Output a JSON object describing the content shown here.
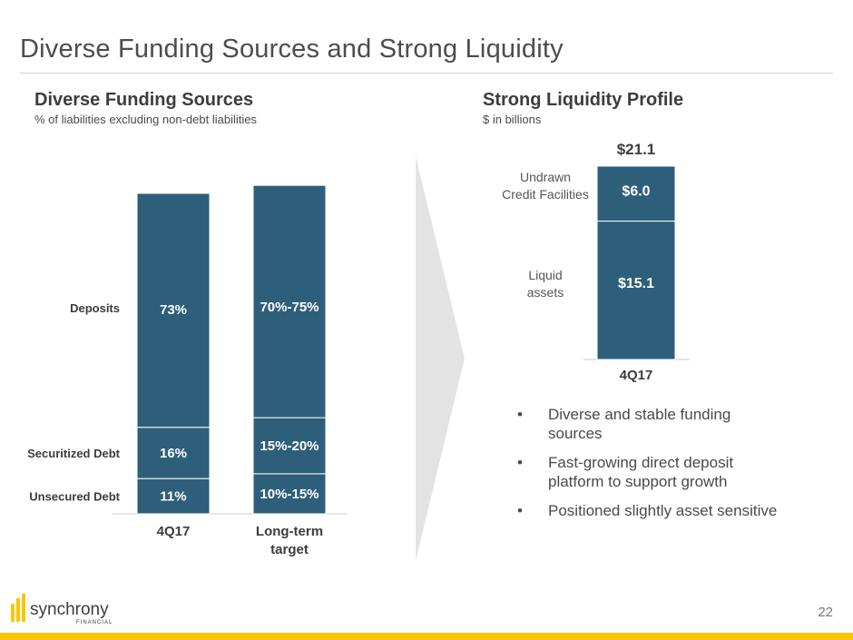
{
  "header": {
    "title": "Diverse Funding Sources and Strong Liquidity"
  },
  "left": {
    "title": "Diverse Funding Sources",
    "subtitle": "% of liabilities excluding non-debt liabilities"
  },
  "right": {
    "title": "Strong Liquidity Profile",
    "subtitle": "$ in billions"
  },
  "colors": {
    "bar": "#2e5f7a",
    "accent": "#fbc600",
    "text": "#4a4a4a"
  },
  "chart_data": [
    {
      "type": "bar",
      "stacked": true,
      "title": "Diverse Funding Sources",
      "subtitle": "% of liabilities excluding non-debt liabilities",
      "categories": [
        "4Q17",
        "Long-term target"
      ],
      "ylim": [
        0,
        100
      ],
      "series": [
        {
          "name": "Unsecured Debt",
          "values": [
            11,
            12.5
          ],
          "labels": [
            "11%",
            "10%-15%"
          ]
        },
        {
          "name": "Securitized Debt",
          "values": [
            16,
            17.5
          ],
          "labels": [
            "16%",
            "15%-20%"
          ]
        },
        {
          "name": "Deposits",
          "values": [
            73,
            72.5
          ],
          "labels": [
            "73%",
            "70%-75%"
          ]
        }
      ]
    },
    {
      "type": "bar",
      "stacked": true,
      "title": "Strong Liquidity Profile",
      "subtitle": "$ in billions",
      "categories": [
        "4Q17"
      ],
      "total_label": "$21.1",
      "total": 21.1,
      "series": [
        {
          "name": "Liquid assets",
          "values": [
            15.1
          ],
          "labels": [
            "$15.1"
          ]
        },
        {
          "name": "Undrawn Credit Facilities",
          "values": [
            6.0
          ],
          "labels": [
            "$6.0"
          ]
        }
      ],
      "series_label_lines": [
        [
          "Liquid",
          "assets"
        ],
        [
          "Undrawn",
          "Credit Facilities"
        ]
      ]
    }
  ],
  "bullets": [
    {
      "dot": "•",
      "text": "Diverse and stable funding sources"
    },
    {
      "dot": "•",
      "text": "Fast-growing direct deposit platform to support growth"
    },
    {
      "dot": "•",
      "text": "Positioned slightly asset sensitive"
    }
  ],
  "logo": {
    "name": "synchrony",
    "tagline": "FINANCIAL"
  },
  "page_number": "22"
}
